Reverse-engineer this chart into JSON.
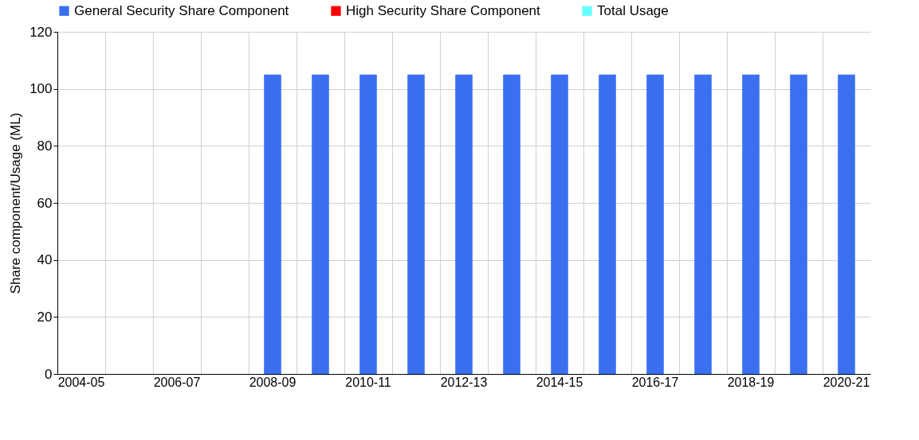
{
  "chart_data": {
    "type": "bar",
    "ylabel": "Share component/Usage (ML)",
    "categories": [
      "2004-05",
      null,
      "2006-07",
      null,
      "2008-09",
      null,
      "2010-11",
      null,
      "2012-13",
      null,
      "2014-15",
      null,
      "2016-17",
      null,
      "2018-19",
      null,
      "2020-21"
    ],
    "series": [
      {
        "name": "General Security Share Component",
        "color": "#3a6ff0",
        "values": [
          null,
          null,
          null,
          null,
          105,
          105,
          105,
          105,
          105,
          105,
          105,
          105,
          105,
          105,
          105,
          105,
          105
        ]
      },
      {
        "name": "High Security Share Component",
        "color": "#ff0000",
        "values": [
          null,
          null,
          null,
          null,
          null,
          null,
          null,
          null,
          null,
          null,
          null,
          null,
          null,
          null,
          null,
          null,
          null
        ]
      },
      {
        "name": "Total Usage",
        "color": "#66ffff",
        "values": [
          null,
          null,
          null,
          null,
          null,
          null,
          null,
          null,
          null,
          null,
          null,
          null,
          null,
          null,
          null,
          null,
          null
        ]
      }
    ],
    "ylim": [
      0,
      120
    ],
    "yticks": [
      0,
      20,
      40,
      60,
      80,
      100,
      120
    ],
    "grid": true,
    "legend": "top"
  }
}
